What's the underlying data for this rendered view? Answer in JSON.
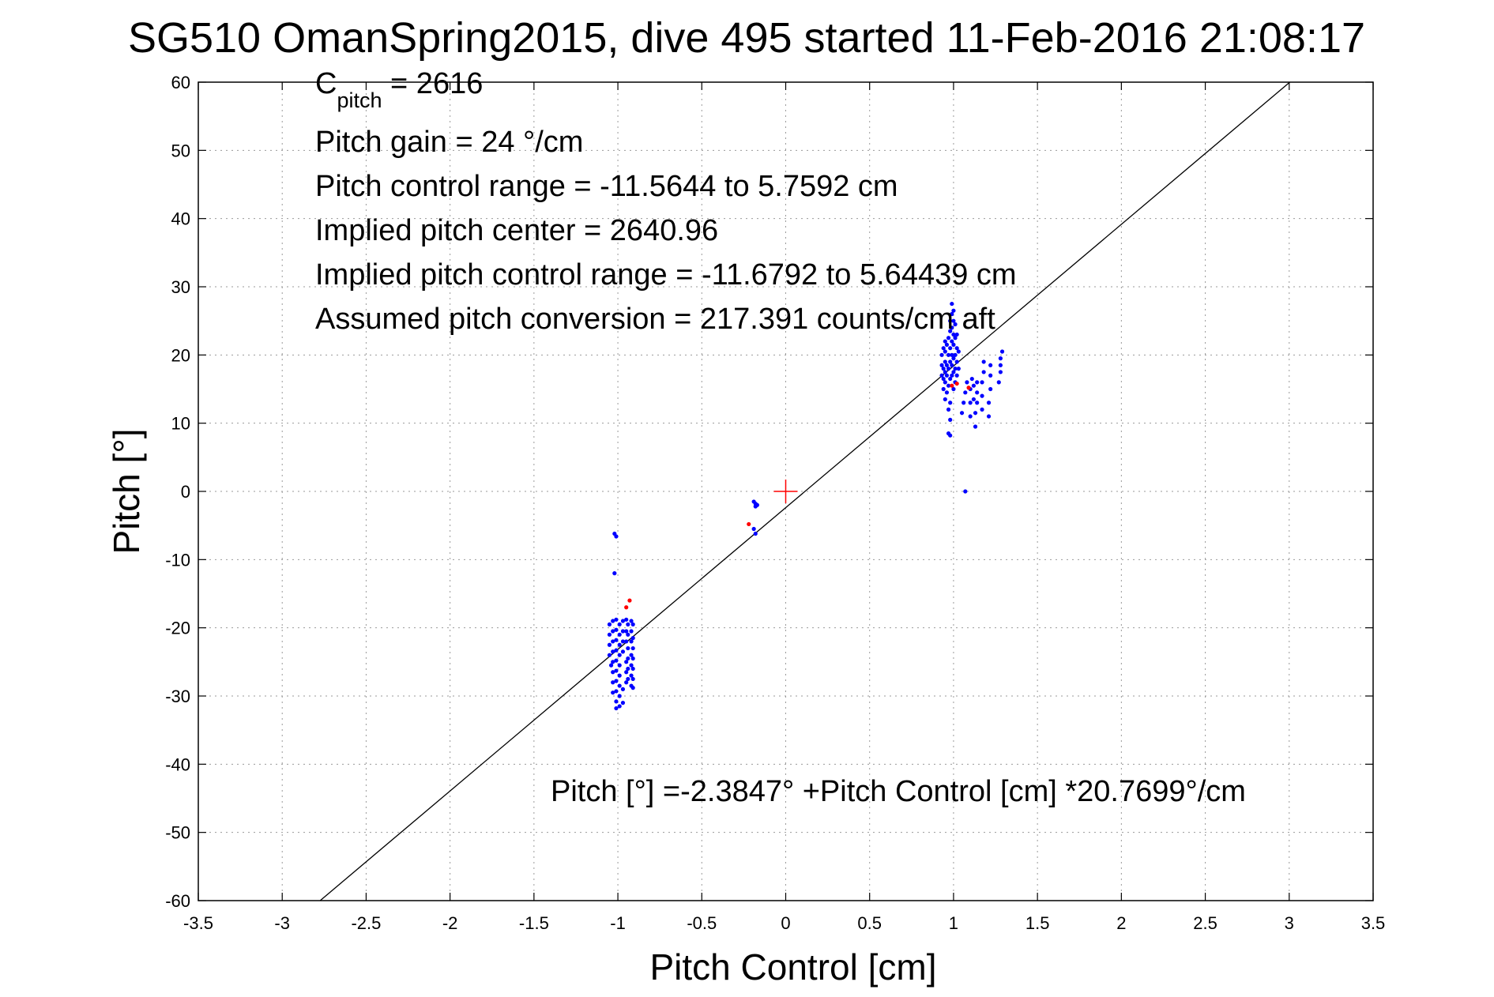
{
  "chart_data": {
    "type": "scatter",
    "title": "SG510 OmanSpring2015, dive 495 started 11-Feb-2016 21:08:17",
    "xlabel": "Pitch Control [cm]",
    "ylabel": "Pitch [°]",
    "xlim": [
      -3.5,
      3.5
    ],
    "ylim": [
      -60,
      60
    ],
    "xticks": [
      -3.5,
      -3,
      -2.5,
      -2,
      -1.5,
      -1,
      -0.5,
      0,
      0.5,
      1,
      1.5,
      2,
      2.5,
      3,
      3.5
    ],
    "xtick_labels": [
      "-3.5",
      "-3",
      "-2.5",
      "-2",
      "-1.5",
      "-1",
      "-0.5",
      "0",
      "0.5",
      "1",
      "1.5",
      "2",
      "2.5",
      "3",
      "3.5"
    ],
    "yticks": [
      -60,
      -50,
      -40,
      -30,
      -20,
      -10,
      0,
      10,
      20,
      30,
      40,
      50,
      60
    ],
    "ytick_labels": [
      "-60",
      "-50",
      "-40",
      "-30",
      "-20",
      "-10",
      "0",
      "10",
      "20",
      "30",
      "40",
      "50",
      "60"
    ],
    "grid": true,
    "annotations": {
      "c_pitch_main": "C",
      "c_pitch_sub": "pitch",
      "c_pitch_value": " = 2616",
      "pitch_gain": "Pitch gain = 24 °/cm",
      "pitch_control_range": "Pitch control range = -11.5644 to 5.7592 cm",
      "implied_pitch_center": "Implied pitch center = 2640.96",
      "implied_pitch_control_range": "Implied pitch control range = -11.6792 to 5.64439 cm",
      "assumed_pitch_conversion": "Assumed pitch conversion = 217.391 counts/cm aft",
      "fit_equation": "Pitch [°] =-2.3847° +Pitch Control [cm] *20.7699°/cm"
    },
    "fit_line": {
      "intercept": -2.3847,
      "slope": 20.7699,
      "color": "#000000"
    },
    "center_marker": {
      "x": 0,
      "y": 0,
      "color": "#ff0000"
    },
    "series": [
      {
        "color": "#0000ff",
        "points": [
          [
            -1.02,
            -6.2
          ],
          [
            -1.01,
            -6.6
          ],
          [
            -1.02,
            -12.0
          ],
          [
            -1.05,
            -19.5
          ],
          [
            -1.05,
            -21.0
          ],
          [
            -1.05,
            -22.5
          ],
          [
            -1.05,
            -24.0
          ],
          [
            -1.04,
            -25.5
          ],
          [
            -1.03,
            -19.0
          ],
          [
            -1.03,
            -20.5
          ],
          [
            -1.03,
            -22.0
          ],
          [
            -1.03,
            -23.5
          ],
          [
            -1.03,
            -25.0
          ],
          [
            -1.03,
            -26.5
          ],
          [
            -1.03,
            -28.0
          ],
          [
            -1.03,
            -29.5
          ],
          [
            -1.01,
            -18.8
          ],
          [
            -1.01,
            -20.3
          ],
          [
            -1.01,
            -21.8
          ],
          [
            -1.01,
            -23.3
          ],
          [
            -1.01,
            -24.8
          ],
          [
            -1.01,
            -26.3
          ],
          [
            -1.01,
            -27.8
          ],
          [
            -1.01,
            -29.3
          ],
          [
            -1.01,
            -30.8
          ],
          [
            -1.01,
            -31.8
          ],
          [
            -0.99,
            -19.5
          ],
          [
            -0.99,
            -21.0
          ],
          [
            -0.99,
            -22.5
          ],
          [
            -0.99,
            -24.0
          ],
          [
            -0.99,
            -25.5
          ],
          [
            -0.99,
            -27.0
          ],
          [
            -0.99,
            -28.5
          ],
          [
            -0.99,
            -30.0
          ],
          [
            -0.99,
            -31.5
          ],
          [
            -0.97,
            -19.0
          ],
          [
            -0.97,
            -20.5
          ],
          [
            -0.97,
            -22.0
          ],
          [
            -0.97,
            -23.5
          ],
          [
            -0.97,
            -29.0
          ],
          [
            -0.97,
            -31.0
          ],
          [
            -0.95,
            -18.8
          ],
          [
            -0.95,
            -20.5
          ],
          [
            -0.95,
            -22.0
          ],
          [
            -0.95,
            -25.0
          ],
          [
            -0.95,
            -26.5
          ],
          [
            -0.95,
            -28.0
          ],
          [
            -0.94,
            -19.5
          ],
          [
            -0.94,
            -21.0
          ],
          [
            -0.94,
            -23.0
          ],
          [
            -0.94,
            -24.5
          ],
          [
            -0.94,
            -26.0
          ],
          [
            -0.94,
            -27.5
          ],
          [
            -0.92,
            -19.0
          ],
          [
            -0.92,
            -20.5
          ],
          [
            -0.92,
            -22.0
          ],
          [
            -0.92,
            -24.0
          ],
          [
            -0.92,
            -25.5
          ],
          [
            -0.92,
            -27.0
          ],
          [
            -0.92,
            -28.5
          ],
          [
            -0.91,
            -19.5
          ],
          [
            -0.91,
            -21.5
          ],
          [
            -0.91,
            -23.0
          ],
          [
            -0.91,
            -24.5
          ],
          [
            -0.91,
            -26.0
          ],
          [
            -0.91,
            -27.5
          ],
          [
            -0.91,
            -28.8
          ],
          [
            -0.19,
            -1.5
          ],
          [
            -0.18,
            -1.8
          ],
          [
            -0.18,
            -2.2
          ],
          [
            -0.17,
            -2.0
          ],
          [
            -0.19,
            -5.5
          ],
          [
            -0.18,
            -6.2
          ],
          [
            0.93,
            17.0
          ],
          [
            0.93,
            18.5
          ],
          [
            0.93,
            20.0
          ],
          [
            0.94,
            15.0
          ],
          [
            0.94,
            16.5
          ],
          [
            0.94,
            18.0
          ],
          [
            0.94,
            21.0
          ],
          [
            0.95,
            13.5
          ],
          [
            0.95,
            16.0
          ],
          [
            0.95,
            17.5
          ],
          [
            0.95,
            19.0
          ],
          [
            0.95,
            20.5
          ],
          [
            0.95,
            22.0
          ],
          [
            0.96,
            14.5
          ],
          [
            0.96,
            17.0
          ],
          [
            0.96,
            18.5
          ],
          [
            0.96,
            21.5
          ],
          [
            0.97,
            8.5
          ],
          [
            0.97,
            12.0
          ],
          [
            0.97,
            15.5
          ],
          [
            0.97,
            18.0
          ],
          [
            0.97,
            20.0
          ],
          [
            0.97,
            22.5
          ],
          [
            0.98,
            8.2
          ],
          [
            0.98,
            10.5
          ],
          [
            0.98,
            13.0
          ],
          [
            0.98,
            16.5
          ],
          [
            0.98,
            19.0
          ],
          [
            0.98,
            21.0
          ],
          [
            0.98,
            23.5
          ],
          [
            0.98,
            25.0
          ],
          [
            0.99,
            17.0
          ],
          [
            0.99,
            18.5
          ],
          [
            0.99,
            20.0
          ],
          [
            0.99,
            22.0
          ],
          [
            0.99,
            24.0
          ],
          [
            0.99,
            26.0
          ],
          [
            0.99,
            27.5
          ],
          [
            1.0,
            15.0
          ],
          [
            1.0,
            17.5
          ],
          [
            1.0,
            19.5
          ],
          [
            1.0,
            21.5
          ],
          [
            1.0,
            23.0
          ],
          [
            1.0,
            25.0
          ],
          [
            1.0,
            26.5
          ],
          [
            1.01,
            16.0
          ],
          [
            1.01,
            18.0
          ],
          [
            1.01,
            20.0
          ],
          [
            1.01,
            22.5
          ],
          [
            1.01,
            24.5
          ],
          [
            1.02,
            17.0
          ],
          [
            1.02,
            19.0
          ],
          [
            1.02,
            21.0
          ],
          [
            1.02,
            23.0
          ],
          [
            1.03,
            18.0
          ],
          [
            1.03,
            20.5
          ],
          [
            1.07,
            0.0
          ],
          [
            1.05,
            11.5
          ],
          [
            1.06,
            13.0
          ],
          [
            1.07,
            14.5
          ],
          [
            1.08,
            16.0
          ],
          [
            1.1,
            11.0
          ],
          [
            1.1,
            13.0
          ],
          [
            1.1,
            15.0
          ],
          [
            1.11,
            16.5
          ],
          [
            1.12,
            13.5
          ],
          [
            1.12,
            15.5
          ],
          [
            1.13,
            9.5
          ],
          [
            1.13,
            11.5
          ],
          [
            1.14,
            13.0
          ],
          [
            1.14,
            14.5
          ],
          [
            1.14,
            16.0
          ],
          [
            1.17,
            12.0
          ],
          [
            1.17,
            14.0
          ],
          [
            1.17,
            16.0
          ],
          [
            1.18,
            17.5
          ],
          [
            1.18,
            19.0
          ],
          [
            1.21,
            11.0
          ],
          [
            1.21,
            13.0
          ],
          [
            1.22,
            15.0
          ],
          [
            1.22,
            17.0
          ],
          [
            1.22,
            18.5
          ],
          [
            1.27,
            16.0
          ],
          [
            1.28,
            17.5
          ],
          [
            1.28,
            18.5
          ],
          [
            1.28,
            19.5
          ],
          [
            1.29,
            20.5
          ]
        ]
      },
      {
        "color": "#ff0000",
        "points": [
          [
            -0.93,
            -16.0
          ],
          [
            -0.95,
            -17.0
          ],
          [
            -0.22,
            -4.8
          ],
          [
            0.99,
            15.5
          ],
          [
            1.02,
            15.8
          ],
          [
            1.09,
            15.2
          ]
        ]
      }
    ]
  }
}
